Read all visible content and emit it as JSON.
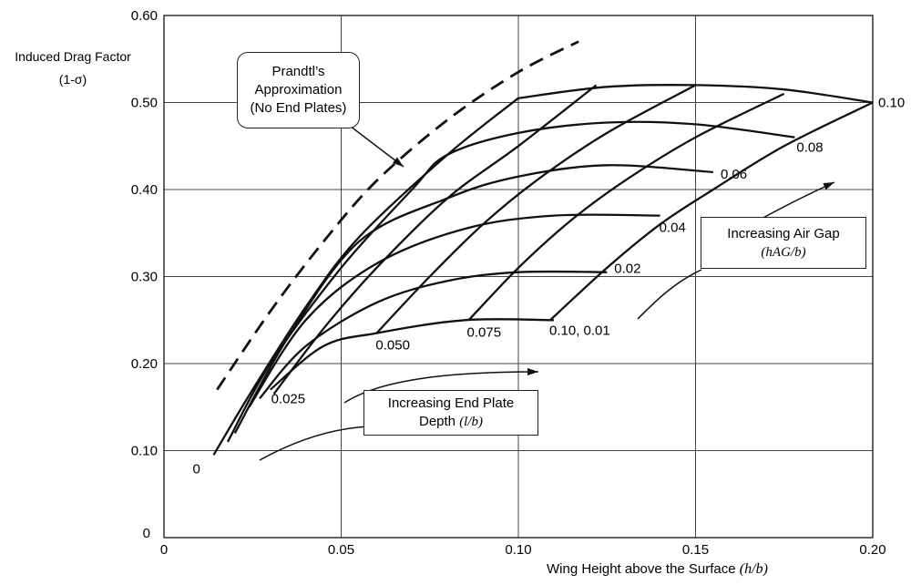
{
  "chart_data": {
    "type": "line",
    "xlabel_text": "Wing Height above the Surface",
    "xlabel_symbol": "(h/b)",
    "ylabel_line1": "Induced Drag Factor",
    "ylabel_line2": "(1-σ)",
    "xlim": [
      0,
      0.2
    ],
    "ylim": [
      0,
      0.6
    ],
    "x_ticks": [
      "0",
      "0.05",
      "0.10",
      "0.15",
      "0.20"
    ],
    "y_ticks": [
      "0",
      "0.10",
      "0.20",
      "0.30",
      "0.40",
      "0.50",
      "0.60"
    ],
    "grid": true,
    "prandtl_curve": {
      "x": [
        0.015,
        0.03,
        0.045,
        0.06,
        0.08,
        0.1,
        0.117
      ],
      "y": [
        0.17,
        0.26,
        0.34,
        0.41,
        0.48,
        0.535,
        0.57
      ]
    },
    "end_plate_depth_curves": [
      {
        "label": "0",
        "x": [
          0.014,
          0.025,
          0.04,
          0.055,
          0.08,
          0.1
        ],
        "y": [
          0.095,
          0.17,
          0.265,
          0.345,
          0.44,
          0.505
        ]
      },
      {
        "label": "0.025",
        "x": [
          0.031,
          0.045,
          0.06,
          0.08,
          0.1,
          0.122
        ],
        "y": [
          0.165,
          0.24,
          0.31,
          0.39,
          0.45,
          0.52
        ]
      },
      {
        "label": "0.050",
        "x": [
          0.06,
          0.075,
          0.09,
          0.105,
          0.125,
          0.15
        ],
        "y": [
          0.235,
          0.3,
          0.36,
          0.41,
          0.465,
          0.52
        ]
      },
      {
        "label": "0.075",
        "x": [
          0.086,
          0.1,
          0.115,
          0.13,
          0.15,
          0.175
        ],
        "y": [
          0.25,
          0.31,
          0.365,
          0.41,
          0.46,
          0.51
        ]
      },
      {
        "label": "0.10, 0.01",
        "x": [
          0.109,
          0.125,
          0.14,
          0.155,
          0.175,
          0.2
        ],
        "y": [
          0.25,
          0.31,
          0.36,
          0.4,
          0.45,
          0.5
        ]
      }
    ],
    "air_gap_curves": [
      {
        "label": "",
        "x": [
          0.03,
          0.045,
          0.06,
          0.085,
          0.11
        ],
        "y": [
          0.17,
          0.22,
          0.235,
          0.25,
          0.25
        ]
      },
      {
        "label": "0.02",
        "x": [
          0.027,
          0.04,
          0.06,
          0.08,
          0.1,
          0.125
        ],
        "y": [
          0.16,
          0.22,
          0.27,
          0.295,
          0.305,
          0.305
        ]
      },
      {
        "label": "0.04",
        "x": [
          0.024,
          0.04,
          0.06,
          0.085,
          0.11,
          0.14
        ],
        "y": [
          0.15,
          0.25,
          0.315,
          0.355,
          0.37,
          0.37
        ]
      },
      {
        "label": "0.06",
        "x": [
          0.02,
          0.035,
          0.055,
          0.08,
          0.1,
          0.125,
          0.155
        ],
        "y": [
          0.12,
          0.23,
          0.34,
          0.39,
          0.415,
          0.428,
          0.42
        ]
      },
      {
        "label": "0.08",
        "x": [
          0.018,
          0.03,
          0.05,
          0.07,
          0.08,
          0.1,
          0.125,
          0.15,
          0.178
        ],
        "y": [
          0.11,
          0.2,
          0.31,
          0.4,
          0.44,
          0.465,
          0.477,
          0.475,
          0.46
        ]
      },
      {
        "label": "0.10",
        "x": [
          0.1,
          0.125,
          0.15,
          0.175,
          0.2
        ],
        "y": [
          0.505,
          0.518,
          0.52,
          0.515,
          0.5
        ]
      }
    ],
    "annotations": {
      "prandtl": [
        "Prandtl’s",
        "Approximation",
        "(No End Plates)"
      ],
      "end_plate": [
        "Increasing End Plate",
        "Depth",
        "(l/b)"
      ],
      "air_gap": [
        "Increasing Air Gap",
        "(hAG/b)"
      ]
    }
  }
}
